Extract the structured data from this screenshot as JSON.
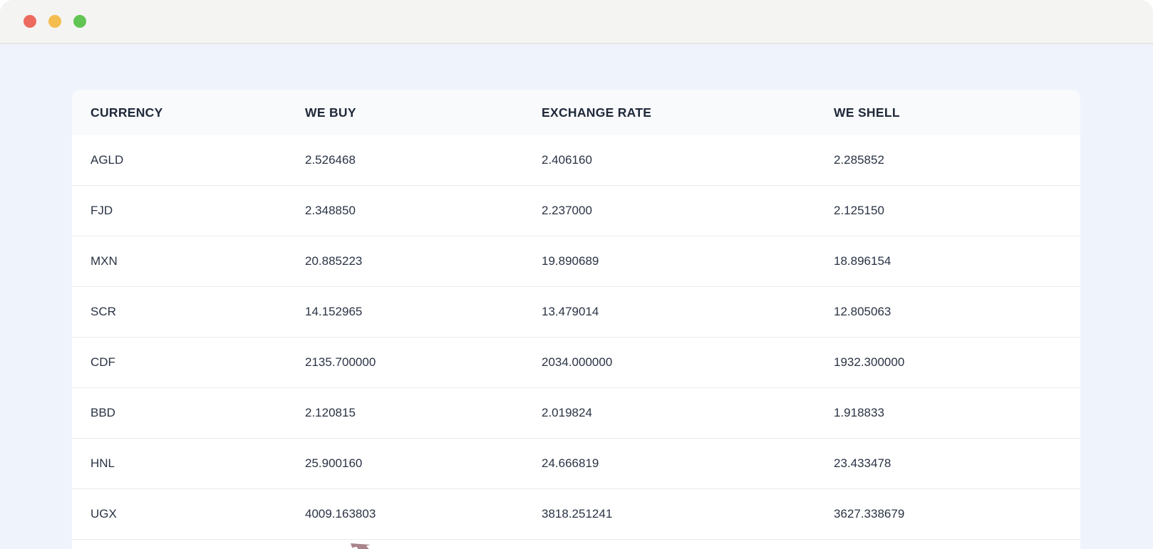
{
  "window": {
    "traffic_lights": [
      {
        "name": "close",
        "color": "#ED6A5E"
      },
      {
        "name": "minimize",
        "color": "#F5BD4F"
      },
      {
        "name": "zoom",
        "color": "#61C554"
      }
    ]
  },
  "colors": {
    "page_bg": "#FFFFFF",
    "titlebar_bg": "#F4F4F2",
    "titlebar_border": "#E6E6E4",
    "body_bg": "#EFF3FB",
    "card_header_bg": "#F8FAFC",
    "row_bg": "#FFFFFF",
    "row_border": "#E9EBEF",
    "text": "#1E2939"
  },
  "table": {
    "columns": [
      {
        "key": "currency",
        "label": "CURRENCY"
      },
      {
        "key": "we_buy",
        "label": "WE BUY"
      },
      {
        "key": "exchange_rate",
        "label": "EXCHANGE RATE"
      },
      {
        "key": "we_shell",
        "label": "WE SHELL"
      }
    ],
    "rows": [
      [
        "AGLD",
        "2.526468",
        "2.406160",
        "2.285852"
      ],
      [
        "FJD",
        "2.348850",
        "2.237000",
        "2.125150"
      ],
      [
        "MXN",
        "20.885223",
        "19.890689",
        "18.896154"
      ],
      [
        "SCR",
        "14.152965",
        "13.479014",
        "12.805063"
      ],
      [
        "CDF",
        "2135.700000",
        "2034.000000",
        "1932.300000"
      ],
      [
        "BBD",
        "2.120815",
        "2.019824",
        "1.918833"
      ],
      [
        "HNL",
        "25.900160",
        "24.666819",
        "23.433478"
      ],
      [
        "UGX",
        "4009.163803",
        "3818.251241",
        "3627.338679"
      ]
    ]
  }
}
